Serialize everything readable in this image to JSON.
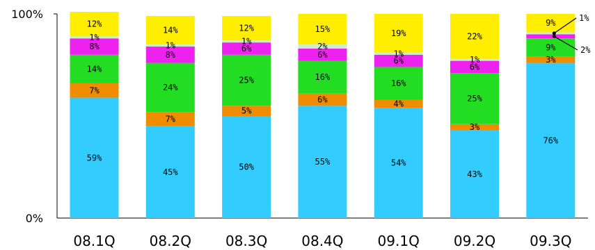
{
  "chart_data": {
    "type": "bar",
    "stacked": true,
    "categories": [
      "08.1Q",
      "08.2Q",
      "08.3Q",
      "08.4Q",
      "09.1Q",
      "09.2Q",
      "09.3Q"
    ],
    "ylim": [
      0,
      100
    ],
    "y_tick_labels": [
      "0%",
      "100%"
    ],
    "series": [
      {
        "color": "#33ccff",
        "values": [
          59,
          45,
          50,
          55,
          54,
          43,
          76
        ],
        "labels": [
          "59%",
          "45%",
          "50%",
          "55%",
          "54%",
          "43%",
          "76%"
        ]
      },
      {
        "color": "#f08c00",
        "values": [
          7,
          7,
          5,
          6,
          4,
          3,
          3
        ],
        "labels": [
          "7%",
          "7%",
          "5%",
          "6%",
          "4%",
          "3%",
          "3%"
        ]
      },
      {
        "color": "#22dd22",
        "values": [
          14,
          24,
          25,
          16,
          16,
          25,
          9
        ],
        "labels": [
          "14%",
          "24%",
          "25%",
          "16%",
          "16%",
          "25%",
          "9%"
        ]
      },
      {
        "color": "#ee22ee",
        "values": [
          8,
          8,
          6,
          6,
          6,
          6,
          2
        ],
        "labels": [
          "8%",
          "8%",
          "6%",
          "6%",
          "6%",
          "6%",
          "2%"
        ]
      },
      {
        "color": "#cceecc",
        "values": [
          1,
          1,
          1,
          2,
          1,
          1,
          1
        ],
        "labels": [
          "1%",
          "1%",
          "1%",
          "2%",
          "1%",
          "1%",
          "1%"
        ]
      },
      {
        "color": "#ffee00",
        "values": [
          12,
          14,
          12,
          15,
          19,
          22,
          9
        ],
        "labels": [
          "12%",
          "14%",
          "12%",
          "15%",
          "19%",
          "22%",
          "9%"
        ]
      }
    ],
    "callouts": [
      {
        "category_index": 6,
        "series_index": 4,
        "label": "1%"
      },
      {
        "category_index": 6,
        "series_index": 3,
        "label": "2%"
      }
    ]
  }
}
